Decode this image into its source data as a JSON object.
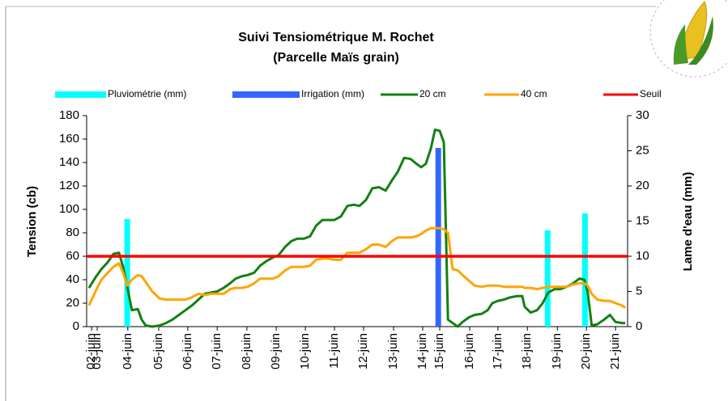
{
  "chart_data": {
    "type": "combo",
    "title": "Suivi Tensiométrique M. Rochet",
    "subtitle": "(Parcelle Maïs grain)",
    "y_label": "Tension (cb)",
    "y2_label": "Lame d'eau (mm)",
    "xlim": [
      2.6,
      21.0
    ],
    "xticks": [
      {
        "value": 2.77,
        "label": "02-juin"
      },
      {
        "value": 2.96,
        "label": "03-juin"
      },
      {
        "value": 4,
        "label": "04-juin"
      },
      {
        "value": 5.05,
        "label": "05-juin"
      },
      {
        "value": 6.04,
        "label": "06-juin"
      },
      {
        "value": 7.04,
        "label": "07-juin"
      },
      {
        "value": 8.05,
        "label": "08-juin"
      },
      {
        "value": 9.05,
        "label": "09-juin"
      },
      {
        "value": 10.04,
        "label": "10-juin"
      },
      {
        "value": 11.03,
        "label": "11-juin"
      },
      {
        "value": 12.02,
        "label": "12-juin"
      },
      {
        "value": 13.04,
        "label": "13-juin"
      },
      {
        "value": 14.03,
        "label": "14-juin"
      },
      {
        "value": 14.61,
        "label": "15-juin"
      },
      {
        "value": 15.63,
        "label": "16-juin"
      },
      {
        "value": 16.59,
        "label": "17-juin"
      },
      {
        "value": 17.59,
        "label": "18-juin"
      },
      {
        "value": 18.61,
        "label": "19-juin"
      },
      {
        "value": 19.6,
        "label": "20-juin"
      },
      {
        "value": 20.59,
        "label": "21-juin"
      }
    ],
    "ylim": [
      0,
      180
    ],
    "yticks": [
      0,
      20,
      40,
      60,
      80,
      100,
      120,
      140,
      160,
      180
    ],
    "y2lim": [
      0,
      30
    ],
    "y2ticks": [
      0,
      5,
      10,
      15,
      20,
      25,
      30
    ],
    "x": [
      2.68,
      2.9,
      3.1,
      3.32,
      3.51,
      3.7,
      3.84,
      3.98,
      4.14,
      4.34,
      4.47,
      4.61,
      4.83,
      5.08,
      5.3,
      5.52,
      5.74,
      5.96,
      6.18,
      6.4,
      6.62,
      6.84,
      7.04,
      7.26,
      7.48,
      7.67,
      7.89,
      8.08,
      8.3,
      8.5,
      8.72,
      8.94,
      9.13,
      9.35,
      9.57,
      9.76,
      9.98,
      10.2,
      10.4,
      10.62,
      10.81,
      11.03,
      11.25,
      11.47,
      11.69,
      11.88,
      12.1,
      12.32,
      12.54,
      12.77,
      12.99,
      13.18,
      13.4,
      13.62,
      13.81,
      13.98,
      14.14,
      14.31,
      14.45,
      14.61,
      14.75,
      14.89,
      15.05,
      15.22,
      15.39,
      15.61,
      15.8,
      16.04,
      16.24,
      16.4,
      16.59,
      16.79,
      17.01,
      17.23,
      17.42,
      17.5,
      17.7,
      17.92,
      18.11,
      18.3,
      18.52,
      18.71,
      18.93,
      19.15,
      19.36,
      19.53,
      19.64,
      19.78,
      19.97,
      20.2,
      20.4,
      20.59,
      20.81,
      20.92
    ],
    "series": [
      {
        "name": "Pluviométrie (mm)",
        "type": "bar",
        "axis": "y2",
        "color": "#00ffff",
        "x": [
          3.98,
          18.28,
          19.55
        ],
        "values": [
          15.3,
          13.7,
          16.1
        ]
      },
      {
        "name": "Irrigation (mm)",
        "type": "bar",
        "axis": "y2",
        "color": "#3366ff",
        "x": [
          14.56
        ],
        "values": [
          25.4
        ]
      },
      {
        "name": "20 cm",
        "type": "line",
        "color": "#138013",
        "values": [
          33,
          42,
          49,
          55,
          62,
          63,
          51,
          34,
          14,
          15,
          6,
          1,
          0,
          1,
          3,
          6,
          10,
          14,
          18,
          23,
          28,
          29,
          30,
          33,
          37,
          41,
          43,
          44,
          46,
          52,
          56,
          59,
          61,
          68,
          73,
          75,
          75,
          77,
          86,
          91,
          91,
          91,
          94,
          103,
          104,
          103,
          108,
          118,
          119,
          116,
          125,
          132,
          144,
          143,
          139,
          136,
          139,
          152,
          168,
          167,
          157,
          6,
          3,
          0,
          4,
          8,
          10,
          11,
          14,
          20,
          22,
          23,
          25,
          26,
          26,
          17,
          12,
          14,
          20,
          29,
          32,
          32,
          34,
          37,
          41,
          40,
          30,
          1,
          2,
          6,
          10,
          4,
          3,
          3
        ]
      },
      {
        "name": "40 cm",
        "type": "line",
        "color": "#ffa500",
        "values": [
          18,
          30,
          40,
          46,
          51,
          54,
          46,
          35,
          40,
          44,
          43,
          38,
          30,
          24,
          23,
          23,
          23,
          23,
          25,
          28,
          27,
          28,
          28,
          28,
          32,
          33,
          33,
          34,
          37,
          41,
          41,
          41,
          43,
          48,
          51,
          51,
          51,
          52,
          57,
          58,
          58,
          57,
          57,
          63,
          63,
          63,
          66,
          70,
          70,
          68,
          73,
          76,
          76,
          76,
          77,
          79,
          82,
          84,
          84,
          84,
          83,
          80,
          49,
          48,
          44,
          39,
          35,
          34,
          35,
          35,
          35,
          34,
          34,
          34,
          34,
          33,
          33,
          32,
          33,
          34,
          34,
          34,
          34,
          36,
          37,
          37,
          35,
          28,
          23,
          22,
          22,
          20,
          18,
          16
        ]
      }
    ],
    "threshold": {
      "name": "Seuil",
      "color": "#ff0000",
      "value": 60
    }
  }
}
